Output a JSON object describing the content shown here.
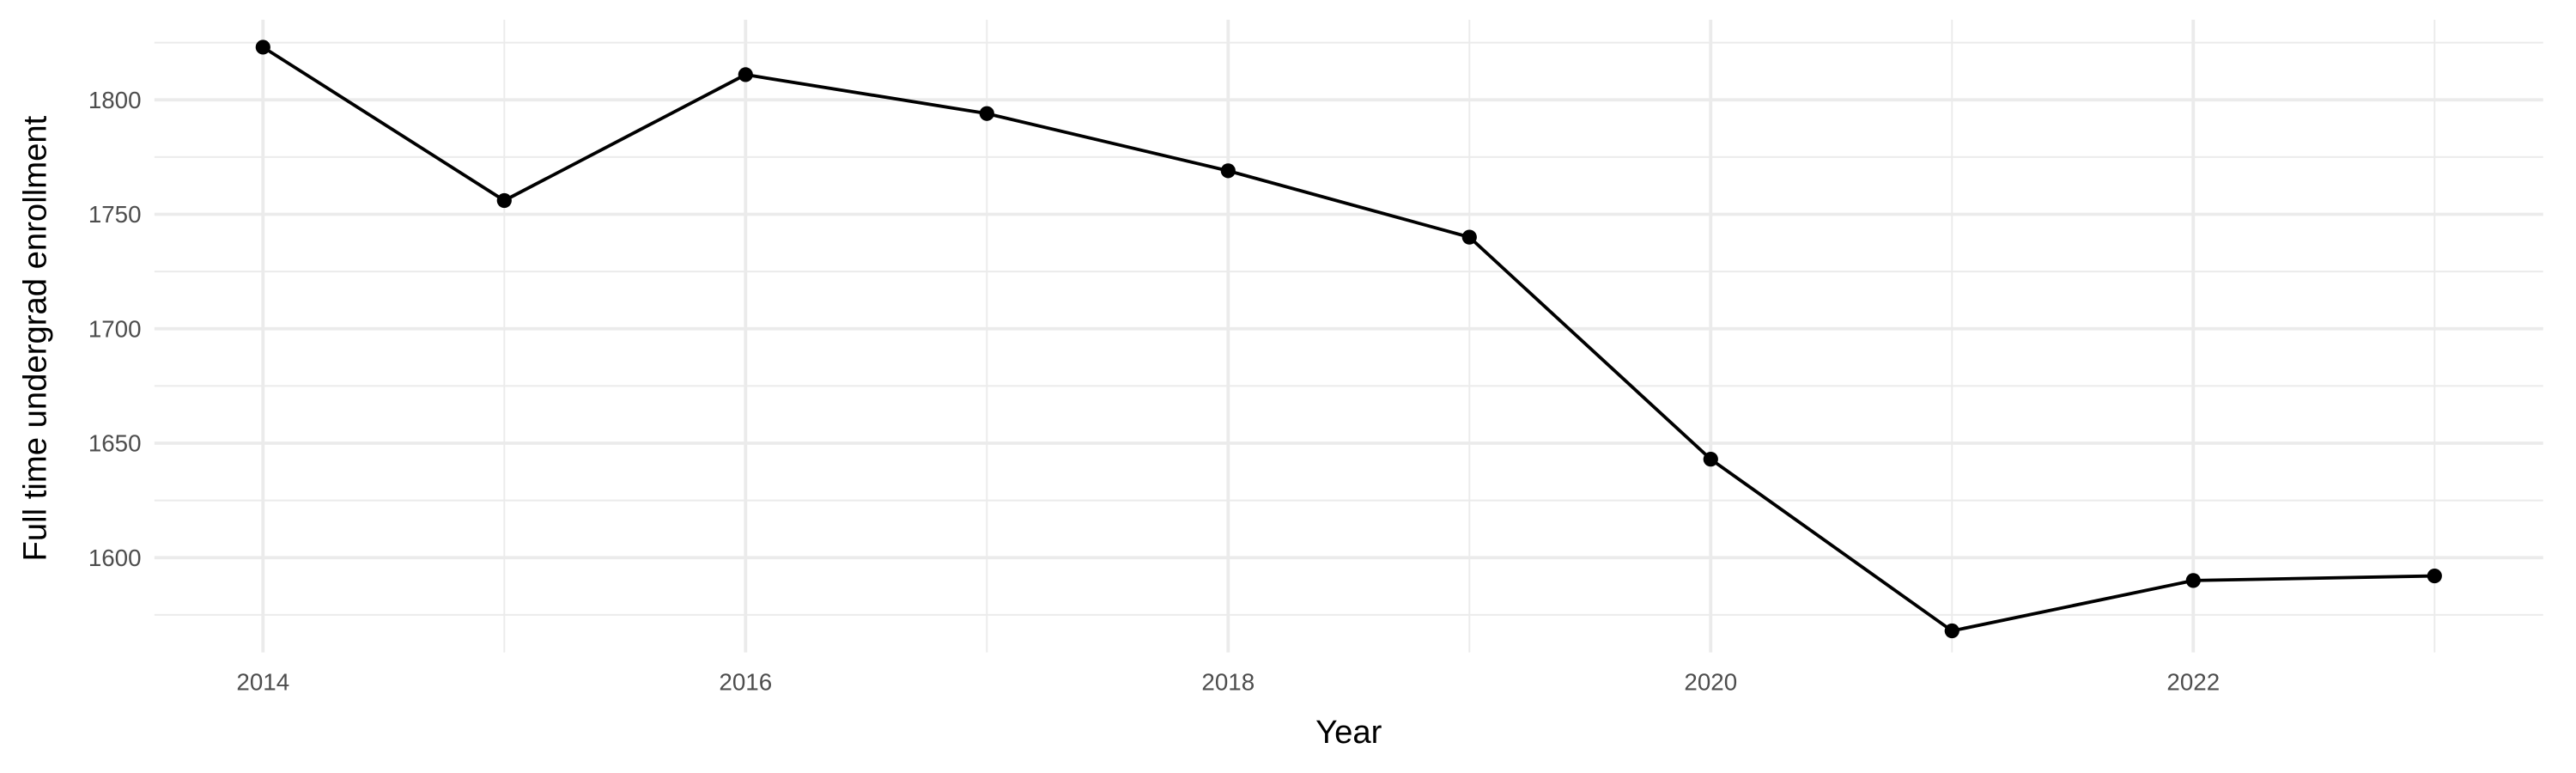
{
  "chart_data": {
    "type": "line",
    "x_label": "Year",
    "y_label": "Full time undergrad enrollment",
    "x": [
      2014,
      2015,
      2016,
      2017,
      2018,
      2019,
      2020,
      2021,
      2022,
      2023
    ],
    "series": [
      {
        "color": "#000000",
        "values": [
          1823,
          1756,
          1811,
          1794,
          1769,
          1740,
          1643,
          1568,
          1590,
          1592
        ]
      }
    ],
    "xlim": [
      2013.55,
      2023.45
    ],
    "ylim": [
      1558.6,
      1835
    ],
    "xticks": [
      2014,
      2016,
      2018,
      2020,
      2022
    ],
    "yticks": [
      1600,
      1650,
      1700,
      1750,
      1800
    ],
    "xminor": [
      2015,
      2017,
      2019,
      2021,
      2023
    ],
    "yminor": [
      1575,
      1625,
      1675,
      1725,
      1775,
      1825
    ],
    "grid": true,
    "markers": true
  }
}
